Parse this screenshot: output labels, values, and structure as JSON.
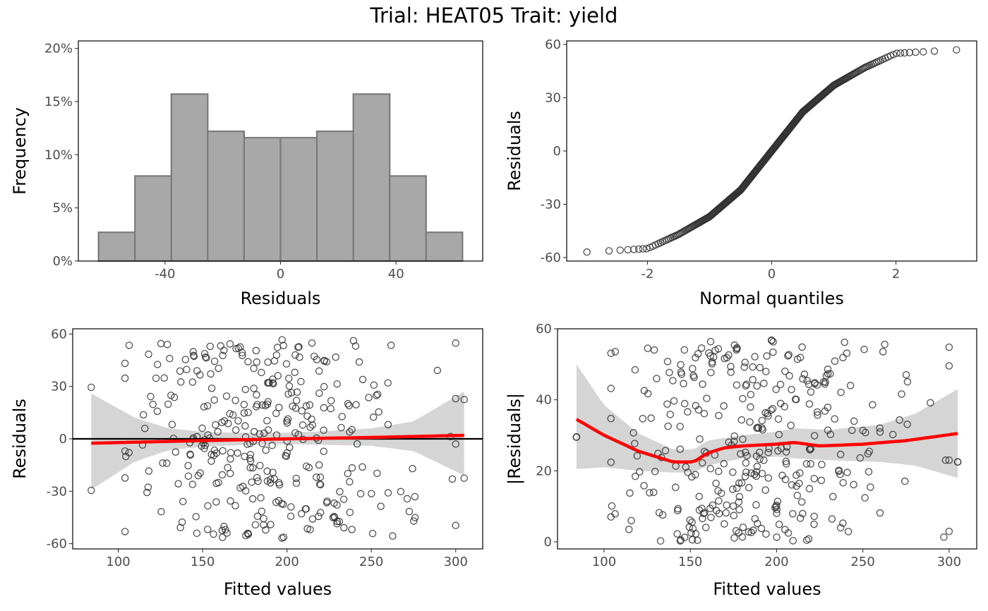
{
  "page_title": "Trial: HEAT05 Trait: yield",
  "colors": {
    "bar_fill": "#a8a8a8",
    "bar_edge": "#7a7a7a",
    "point": "#333333",
    "smooth": "#ff0000",
    "ribbon": "#d3d3d3",
    "zero_line": "#000000"
  },
  "chart_data": [
    {
      "id": "hist",
      "type": "bar",
      "title": "",
      "xlabel": "Residuals",
      "ylabel": "Frequency",
      "bin_edges": [
        -63,
        -50.4,
        -37.8,
        -25.2,
        -12.6,
        0,
        12.6,
        25.2,
        37.8,
        50.4,
        63
      ],
      "values": [
        2.7,
        8.0,
        15.7,
        12.2,
        11.6,
        11.6,
        12.2,
        15.7,
        8.0,
        2.7
      ],
      "xlim": [
        -70,
        70
      ],
      "ylim": [
        0,
        20.7
      ],
      "xticks": [
        {
          "v": -40,
          "label": "-40"
        },
        {
          "v": 0,
          "label": "0"
        },
        {
          "v": 40,
          "label": "40"
        }
      ],
      "yticks": [
        {
          "v": 0,
          "label": "0%"
        },
        {
          "v": 5,
          "label": "5%"
        },
        {
          "v": 10,
          "label": "10%"
        },
        {
          "v": 15,
          "label": "15%"
        },
        {
          "v": 20,
          "label": "20%"
        }
      ]
    },
    {
      "id": "qq",
      "type": "scatter",
      "title": "",
      "xlabel": "Normal quantiles",
      "ylabel": "Residuals",
      "n_points": 340,
      "quantile_curve": {
        "x": [
          -3,
          -2,
          -1.5,
          -1,
          -0.5,
          0,
          0.5,
          1,
          1.5,
          2,
          3
        ],
        "y": [
          -57,
          -55,
          -47,
          -37,
          -22,
          0,
          22,
          37,
          47,
          55,
          57
        ]
      },
      "xlim": [
        -3.3,
        3.3
      ],
      "ylim": [
        -62,
        62
      ],
      "xticks": [
        {
          "v": -2,
          "label": "-2"
        },
        {
          "v": 0,
          "label": "0"
        },
        {
          "v": 2,
          "label": "2"
        }
      ],
      "yticks": [
        {
          "v": -60,
          "label": "-60"
        },
        {
          "v": -30,
          "label": "-30"
        },
        {
          "v": 0,
          "label": "0"
        },
        {
          "v": 30,
          "label": "30"
        },
        {
          "v": 60,
          "label": "60"
        }
      ]
    },
    {
      "id": "resfit",
      "type": "scatter",
      "title": "",
      "xlabel": "Fitted values",
      "ylabel": "Residuals",
      "n_points": 340,
      "fitted_range": [
        84,
        305
      ],
      "hline": 0,
      "smooth": {
        "x": [
          84,
          150,
          200,
          250,
          305
        ],
        "y": [
          -2.5,
          -1,
          0,
          0.8,
          2
        ]
      },
      "ribbon": {
        "x": [
          84,
          110,
          130,
          150,
          175,
          200,
          225,
          250,
          275,
          305
        ],
        "lower": [
          -29,
          -13,
          -6.5,
          -4.5,
          -3.5,
          -3,
          -3.5,
          -4,
          -7,
          -21
        ],
        "upper": [
          26,
          12,
          6,
          4,
          3.5,
          3.5,
          4.5,
          6,
          10,
          27
        ]
      },
      "xlim": [
        73,
        316
      ],
      "ylim": [
        -63,
        63
      ],
      "xticks": [
        {
          "v": 100,
          "label": "100"
        },
        {
          "v": 150,
          "label": "150"
        },
        {
          "v": 200,
          "label": "200"
        },
        {
          "v": 250,
          "label": "250"
        },
        {
          "v": 300,
          "label": "300"
        }
      ],
      "yticks": [
        {
          "v": -60,
          "label": "-60"
        },
        {
          "v": -30,
          "label": "-30"
        },
        {
          "v": 0,
          "label": "0"
        },
        {
          "v": 30,
          "label": "30"
        },
        {
          "v": 60,
          "label": "60"
        }
      ]
    },
    {
      "id": "absres",
      "type": "scatter",
      "title": "",
      "xlabel": "Fitted values",
      "ylabel": "|Residuals|",
      "n_points": 340,
      "fitted_range": [
        84,
        305
      ],
      "smooth": {
        "x": [
          84,
          100,
          120,
          140,
          152,
          160,
          170,
          180,
          200,
          210,
          225,
          250,
          275,
          305
        ],
        "y": [
          34.5,
          30,
          25.5,
          22.5,
          22.5,
          25,
          26.5,
          27,
          27.5,
          28,
          27,
          27.5,
          28.5,
          30.5
        ]
      },
      "ribbon": {
        "x": [
          84,
          100,
          120,
          140,
          152,
          160,
          180,
          200,
          210,
          230,
          260,
          280,
          305
        ],
        "lower": [
          20.5,
          21,
          20,
          19.5,
          19.5,
          21.5,
          23.5,
          24,
          23.5,
          23,
          22.5,
          21.5,
          18
        ],
        "upper": [
          50,
          38.5,
          30.5,
          26,
          26,
          28.5,
          30,
          31,
          32,
          31.5,
          33,
          36,
          43
        ]
      },
      "xlim": [
        73,
        316
      ],
      "ylim": [
        -2,
        60
      ],
      "xticks": [
        {
          "v": 100,
          "label": "100"
        },
        {
          "v": 150,
          "label": "150"
        },
        {
          "v": 200,
          "label": "200"
        },
        {
          "v": 250,
          "label": "250"
        },
        {
          "v": 300,
          "label": "300"
        }
      ],
      "yticks": [
        {
          "v": 0,
          "label": "0"
        },
        {
          "v": 20,
          "label": "20"
        },
        {
          "v": 40,
          "label": "40"
        },
        {
          "v": 60,
          "label": "60"
        }
      ]
    }
  ]
}
